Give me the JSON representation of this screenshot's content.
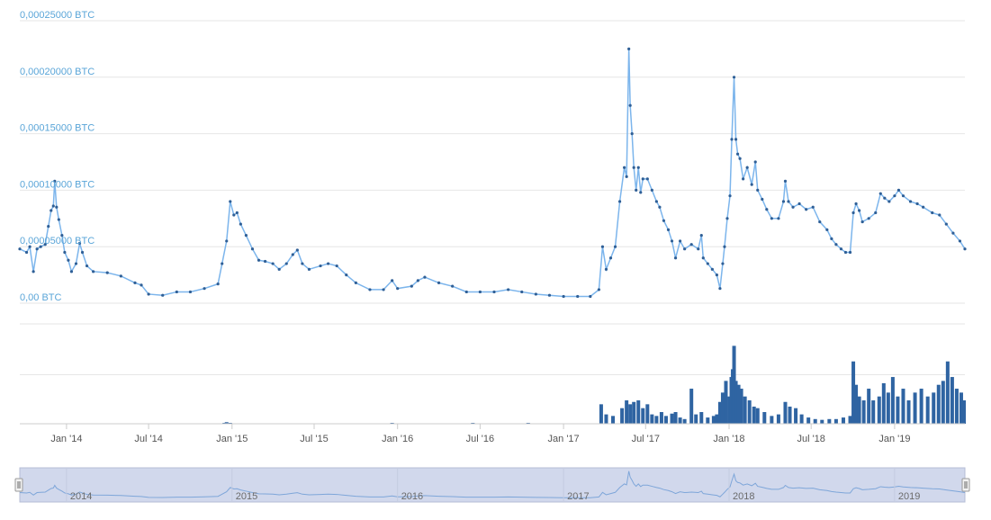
{
  "chart_data": {
    "type": "line",
    "colors": {
      "line": "#7cb5ec",
      "marker": "#2f5f96",
      "volume": "#2f64a2",
      "grid": "#e6e6e6",
      "axis_label": "#5aa5d8",
      "navigator_fill": "#d1d8ec",
      "navigator_line": "#7ea6d9"
    },
    "price_axis": {
      "ylim": [
        0,
        0.00025
      ],
      "tick_labels": [
        "0,00 BTC",
        "0,00005000 BTC",
        "0,00010000 BTC",
        "0,00015000 BTC",
        "0,00020000 BTC",
        "0,00025000 BTC"
      ],
      "tick_values": [
        0,
        5e-05,
        0.0001,
        0.00015,
        0.0002,
        0.00025
      ]
    },
    "x_axis": {
      "range": [
        "2013-09-20",
        "2019-06-05"
      ],
      "ticks": [
        {
          "date": "2014-01-01",
          "label": "Jan '14"
        },
        {
          "date": "2014-07-01",
          "label": "Jul '14"
        },
        {
          "date": "2015-01-01",
          "label": "Jan '15"
        },
        {
          "date": "2015-07-01",
          "label": "Jul '15"
        },
        {
          "date": "2016-01-01",
          "label": "Jan '16"
        },
        {
          "date": "2016-07-01",
          "label": "Jul '16"
        },
        {
          "date": "2017-01-01",
          "label": "Jan '17"
        },
        {
          "date": "2017-07-01",
          "label": "Jul '17"
        },
        {
          "date": "2018-01-01",
          "label": "Jan '18"
        },
        {
          "date": "2018-07-01",
          "label": "Jul '18"
        },
        {
          "date": "2019-01-01",
          "label": "Jan '19"
        }
      ]
    },
    "series": [
      {
        "type": "line",
        "points": [
          [
            "2013-09-20",
            4.8e-05
          ],
          [
            "2013-10-05",
            4.5e-05
          ],
          [
            "2013-10-12",
            5e-05
          ],
          [
            "2013-10-20",
            2.8e-05
          ],
          [
            "2013-10-28",
            4.8e-05
          ],
          [
            "2013-11-05",
            5e-05
          ],
          [
            "2013-11-15",
            5.2e-05
          ],
          [
            "2013-11-22",
            6.8e-05
          ],
          [
            "2013-11-28",
            8.2e-05
          ],
          [
            "2013-12-03",
            8.6e-05
          ],
          [
            "2013-12-06",
            0.000108
          ],
          [
            "2013-12-10",
            8.5e-05
          ],
          [
            "2013-12-15",
            7.4e-05
          ],
          [
            "2013-12-22",
            6e-05
          ],
          [
            "2013-12-28",
            4.5e-05
          ],
          [
            "2014-01-05",
            3.8e-05
          ],
          [
            "2014-01-12",
            2.8e-05
          ],
          [
            "2014-01-22",
            3.5e-05
          ],
          [
            "2014-01-30",
            5.3e-05
          ],
          [
            "2014-02-05",
            4.5e-05
          ],
          [
            "2014-02-15",
            3.3e-05
          ],
          [
            "2014-03-01",
            2.8e-05
          ],
          [
            "2014-04-01",
            2.7e-05
          ],
          [
            "2014-05-01",
            2.4e-05
          ],
          [
            "2014-06-01",
            1.8e-05
          ],
          [
            "2014-06-15",
            1.6e-05
          ],
          [
            "2014-07-01",
            8e-06
          ],
          [
            "2014-08-01",
            7e-06
          ],
          [
            "2014-09-01",
            1e-05
          ],
          [
            "2014-10-01",
            1e-05
          ],
          [
            "2014-11-01",
            1.3e-05
          ],
          [
            "2014-12-01",
            1.7e-05
          ],
          [
            "2014-12-10",
            3.5e-05
          ],
          [
            "2014-12-20",
            5.5e-05
          ],
          [
            "2014-12-28",
            9e-05
          ],
          [
            "2015-01-05",
            7.8e-05
          ],
          [
            "2015-01-12",
            8e-05
          ],
          [
            "2015-01-20",
            7e-05
          ],
          [
            "2015-02-01",
            6e-05
          ],
          [
            "2015-02-15",
            4.8e-05
          ],
          [
            "2015-03-01",
            3.8e-05
          ],
          [
            "2015-03-15",
            3.7e-05
          ],
          [
            "2015-04-01",
            3.5e-05
          ],
          [
            "2015-04-15",
            3e-05
          ],
          [
            "2015-05-01",
            3.5e-05
          ],
          [
            "2015-05-15",
            4.3e-05
          ],
          [
            "2015-05-25",
            4.7e-05
          ],
          [
            "2015-06-05",
            3.5e-05
          ],
          [
            "2015-06-20",
            3e-05
          ],
          [
            "2015-07-15",
            3.3e-05
          ],
          [
            "2015-08-01",
            3.5e-05
          ],
          [
            "2015-08-20",
            3.3e-05
          ],
          [
            "2015-09-10",
            2.5e-05
          ],
          [
            "2015-10-01",
            1.8e-05
          ],
          [
            "2015-11-01",
            1.2e-05
          ],
          [
            "2015-12-01",
            1.2e-05
          ],
          [
            "2015-12-20",
            2e-05
          ],
          [
            "2016-01-01",
            1.3e-05
          ],
          [
            "2016-02-01",
            1.5e-05
          ],
          [
            "2016-02-15",
            2e-05
          ],
          [
            "2016-03-01",
            2.3e-05
          ],
          [
            "2016-04-01",
            1.8e-05
          ],
          [
            "2016-05-01",
            1.5e-05
          ],
          [
            "2016-06-01",
            1e-05
          ],
          [
            "2016-07-01",
            1e-05
          ],
          [
            "2016-08-01",
            1e-05
          ],
          [
            "2016-09-01",
            1.2e-05
          ],
          [
            "2016-10-01",
            1e-05
          ],
          [
            "2016-11-01",
            8e-06
          ],
          [
            "2016-12-01",
            7e-06
          ],
          [
            "2017-01-01",
            6e-06
          ],
          [
            "2017-02-01",
            6e-06
          ],
          [
            "2017-03-01",
            6e-06
          ],
          [
            "2017-03-20",
            1.2e-05
          ],
          [
            "2017-03-28",
            5e-05
          ],
          [
            "2017-04-05",
            3e-05
          ],
          [
            "2017-04-15",
            4e-05
          ],
          [
            "2017-04-25",
            5e-05
          ],
          [
            "2017-05-05",
            9e-05
          ],
          [
            "2017-05-15",
            0.00012
          ],
          [
            "2017-05-20",
            0.000112
          ],
          [
            "2017-05-25",
            0.000225
          ],
          [
            "2017-05-28",
            0.000175
          ],
          [
            "2017-06-01",
            0.00015
          ],
          [
            "2017-06-05",
            0.00012
          ],
          [
            "2017-06-10",
            0.0001
          ],
          [
            "2017-06-15",
            0.00012
          ],
          [
            "2017-06-20",
            9.8e-05
          ],
          [
            "2017-06-25",
            0.00011
          ],
          [
            "2017-07-05",
            0.00011
          ],
          [
            "2017-07-15",
            0.0001
          ],
          [
            "2017-07-25",
            9e-05
          ],
          [
            "2017-08-01",
            8.5e-05
          ],
          [
            "2017-08-10",
            7.3e-05
          ],
          [
            "2017-08-20",
            6.5e-05
          ],
          [
            "2017-08-28",
            5.5e-05
          ],
          [
            "2017-09-05",
            4e-05
          ],
          [
            "2017-09-15",
            5.5e-05
          ],
          [
            "2017-09-25",
            4.8e-05
          ],
          [
            "2017-10-10",
            5.2e-05
          ],
          [
            "2017-10-25",
            4.8e-05
          ],
          [
            "2017-11-01",
            6e-05
          ],
          [
            "2017-11-05",
            4e-05
          ],
          [
            "2017-11-15",
            3.5e-05
          ],
          [
            "2017-11-25",
            3e-05
          ],
          [
            "2017-12-05",
            2.5e-05
          ],
          [
            "2017-12-12",
            1.3e-05
          ],
          [
            "2017-12-18",
            3.5e-05
          ],
          [
            "2017-12-22",
            5e-05
          ],
          [
            "2017-12-28",
            7.5e-05
          ],
          [
            "2018-01-03",
            9.5e-05
          ],
          [
            "2018-01-07",
            0.000145
          ],
          [
            "2018-01-12",
            0.0002
          ],
          [
            "2018-01-16",
            0.000145
          ],
          [
            "2018-01-20",
            0.000132
          ],
          [
            "2018-01-25",
            0.000128
          ],
          [
            "2018-02-01",
            0.00011
          ],
          [
            "2018-02-10",
            0.00012
          ],
          [
            "2018-02-20",
            0.000105
          ],
          [
            "2018-02-28",
            0.000125
          ],
          [
            "2018-03-05",
            0.0001
          ],
          [
            "2018-03-15",
            9.2e-05
          ],
          [
            "2018-03-25",
            8.3e-05
          ],
          [
            "2018-04-05",
            7.5e-05
          ],
          [
            "2018-04-20",
            7.5e-05
          ],
          [
            "2018-05-01",
            9e-05
          ],
          [
            "2018-05-05",
            0.000108
          ],
          [
            "2018-05-12",
            9e-05
          ],
          [
            "2018-05-22",
            8.5e-05
          ],
          [
            "2018-06-05",
            8.8e-05
          ],
          [
            "2018-06-20",
            8.3e-05
          ],
          [
            "2018-07-05",
            8.5e-05
          ],
          [
            "2018-07-20",
            7.2e-05
          ],
          [
            "2018-08-05",
            6.5e-05
          ],
          [
            "2018-08-15",
            5.7e-05
          ],
          [
            "2018-08-25",
            5.2e-05
          ],
          [
            "2018-09-05",
            4.8e-05
          ],
          [
            "2018-09-15",
            4.5e-05
          ],
          [
            "2018-09-25",
            4.5e-05
          ],
          [
            "2018-10-02",
            8e-05
          ],
          [
            "2018-10-08",
            8.8e-05
          ],
          [
            "2018-10-15",
            8.2e-05
          ],
          [
            "2018-10-22",
            7.2e-05
          ],
          [
            "2018-11-05",
            7.5e-05
          ],
          [
            "2018-11-20",
            8e-05
          ],
          [
            "2018-12-01",
            9.7e-05
          ],
          [
            "2018-12-10",
            9.3e-05
          ],
          [
            "2018-12-20",
            9e-05
          ],
          [
            "2019-01-01",
            9.5e-05
          ],
          [
            "2019-01-10",
            0.0001
          ],
          [
            "2019-01-20",
            9.5e-05
          ],
          [
            "2019-02-05",
            9e-05
          ],
          [
            "2019-02-20",
            8.8e-05
          ],
          [
            "2019-03-05",
            8.5e-05
          ],
          [
            "2019-03-25",
            8e-05
          ],
          [
            "2019-04-10",
            7.8e-05
          ],
          [
            "2019-04-25",
            7e-05
          ],
          [
            "2019-05-10",
            6.2e-05
          ],
          [
            "2019-05-25",
            5.5e-05
          ],
          [
            "2019-06-05",
            4.8e-05
          ]
        ]
      },
      {
        "type": "column",
        "points": [
          [
            "2014-12-15",
            0.01
          ],
          [
            "2014-12-20",
            0.02
          ],
          [
            "2014-12-28",
            0.01
          ],
          [
            "2015-12-20",
            0.01
          ],
          [
            "2016-06-15",
            0.01
          ],
          [
            "2016-10-15",
            0.01
          ],
          [
            "2017-03-25",
            0.25
          ],
          [
            "2017-04-05",
            0.12
          ],
          [
            "2017-04-20",
            0.1
          ],
          [
            "2017-05-10",
            0.2
          ],
          [
            "2017-05-20",
            0.3
          ],
          [
            "2017-05-28",
            0.25
          ],
          [
            "2017-06-05",
            0.28
          ],
          [
            "2017-06-15",
            0.3
          ],
          [
            "2017-06-25",
            0.2
          ],
          [
            "2017-07-05",
            0.25
          ],
          [
            "2017-07-15",
            0.12
          ],
          [
            "2017-07-25",
            0.1
          ],
          [
            "2017-08-05",
            0.15
          ],
          [
            "2017-08-15",
            0.1
          ],
          [
            "2017-08-28",
            0.13
          ],
          [
            "2017-09-05",
            0.15
          ],
          [
            "2017-09-15",
            0.08
          ],
          [
            "2017-09-25",
            0.06
          ],
          [
            "2017-10-10",
            0.45
          ],
          [
            "2017-10-20",
            0.12
          ],
          [
            "2017-11-01",
            0.15
          ],
          [
            "2017-11-15",
            0.08
          ],
          [
            "2017-11-28",
            0.1
          ],
          [
            "2017-12-05",
            0.12
          ],
          [
            "2017-12-12",
            0.28
          ],
          [
            "2017-12-18",
            0.4
          ],
          [
            "2017-12-25",
            0.55
          ],
          [
            "2018-01-02",
            0.35
          ],
          [
            "2018-01-06",
            0.6
          ],
          [
            "2018-01-09",
            0.7
          ],
          [
            "2018-01-12",
            1.0
          ],
          [
            "2018-01-16",
            0.55
          ],
          [
            "2018-01-22",
            0.5
          ],
          [
            "2018-01-28",
            0.45
          ],
          [
            "2018-02-05",
            0.35
          ],
          [
            "2018-02-15",
            0.3
          ],
          [
            "2018-02-25",
            0.22
          ],
          [
            "2018-03-05",
            0.2
          ],
          [
            "2018-03-20",
            0.15
          ],
          [
            "2018-04-05",
            0.1
          ],
          [
            "2018-04-20",
            0.12
          ],
          [
            "2018-05-05",
            0.28
          ],
          [
            "2018-05-15",
            0.22
          ],
          [
            "2018-05-28",
            0.2
          ],
          [
            "2018-06-10",
            0.12
          ],
          [
            "2018-06-25",
            0.08
          ],
          [
            "2018-07-10",
            0.06
          ],
          [
            "2018-07-25",
            0.05
          ],
          [
            "2018-08-10",
            0.06
          ],
          [
            "2018-08-25",
            0.06
          ],
          [
            "2018-09-10",
            0.08
          ],
          [
            "2018-09-25",
            0.1
          ],
          [
            "2018-10-02",
            0.8
          ],
          [
            "2018-10-08",
            0.5
          ],
          [
            "2018-10-15",
            0.35
          ],
          [
            "2018-10-25",
            0.3
          ],
          [
            "2018-11-05",
            0.45
          ],
          [
            "2018-11-15",
            0.3
          ],
          [
            "2018-11-28",
            0.35
          ],
          [
            "2018-12-08",
            0.52
          ],
          [
            "2018-12-18",
            0.4
          ],
          [
            "2018-12-28",
            0.6
          ],
          [
            "2019-01-08",
            0.35
          ],
          [
            "2019-01-20",
            0.45
          ],
          [
            "2019-02-01",
            0.3
          ],
          [
            "2019-02-15",
            0.4
          ],
          [
            "2019-03-01",
            0.45
          ],
          [
            "2019-03-15",
            0.35
          ],
          [
            "2019-03-28",
            0.4
          ],
          [
            "2019-04-08",
            0.5
          ],
          [
            "2019-04-18",
            0.55
          ],
          [
            "2019-04-28",
            0.8
          ],
          [
            "2019-05-08",
            0.6
          ],
          [
            "2019-05-18",
            0.45
          ],
          [
            "2019-05-28",
            0.4
          ],
          [
            "2019-06-03",
            0.3
          ]
        ]
      }
    ],
    "navigator": {
      "labels": [
        {
          "date": "2014-01-01",
          "label": "2014"
        },
        {
          "date": "2015-01-01",
          "label": "2015"
        },
        {
          "date": "2016-01-01",
          "label": "2016"
        },
        {
          "date": "2017-01-01",
          "label": "2017"
        },
        {
          "date": "2018-01-01",
          "label": "2018"
        },
        {
          "date": "2019-01-01",
          "label": "2019"
        }
      ]
    }
  }
}
